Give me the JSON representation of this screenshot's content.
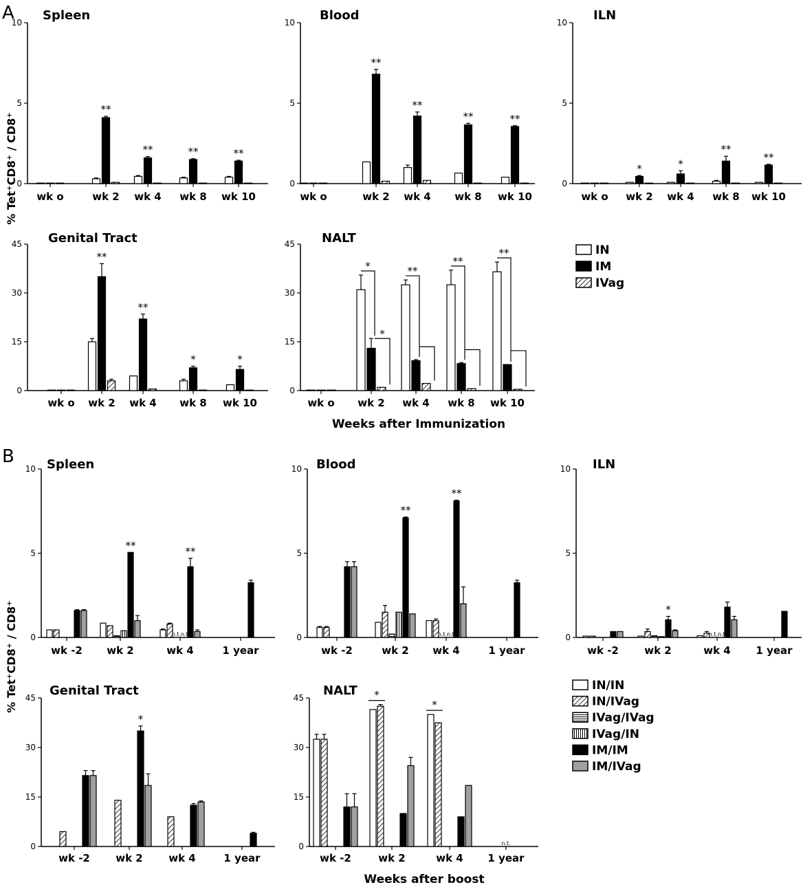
{
  "figure": {
    "panel_letters": [
      "A",
      "B"
    ],
    "ylabel_html": "% Tet⁺CD8⁺ / CD8⁺",
    "xlabel_A": "Weeks after Immunization",
    "xlabel_B": "Weeks after boost"
  },
  "colors": {
    "black": "#000000",
    "gray": "#a0a0a0",
    "white": "#ffffff"
  },
  "legend_A": [
    "IN",
    "IM",
    "IVag"
  ],
  "legend_B": [
    "IN/IN",
    "IN/IVag",
    "IVag/IVag",
    "IVag/IN",
    "IM/IM",
    "IM/IVag"
  ],
  "chart_data": [
    {
      "type": "bar",
      "title": "Spleen",
      "panel": "A",
      "ylim": [
        0,
        10
      ],
      "yticks": [
        0,
        5,
        10
      ],
      "categories": [
        "wk o",
        "wk 2",
        "wk 4",
        "wk 8",
        "wk 10"
      ],
      "series": [
        {
          "name": "IN",
          "values": [
            0,
            0.3,
            0.45,
            0.35,
            0.4
          ],
          "errors": [
            0,
            0.05,
            0.05,
            0.05,
            0.05
          ]
        },
        {
          "name": "IM",
          "values": [
            0,
            4.1,
            1.6,
            1.5,
            1.4
          ],
          "errors": [
            0,
            0.08,
            0.08,
            0.05,
            0.05
          ]
        },
        {
          "name": "IVag",
          "values": [
            0,
            0.08,
            0,
            0,
            0
          ],
          "errors": [
            0,
            0,
            0,
            0,
            0
          ]
        }
      ],
      "significance": [
        "",
        "**",
        "**",
        "**",
        "**"
      ]
    },
    {
      "type": "bar",
      "title": "Blood",
      "panel": "A",
      "ylim": [
        0,
        10
      ],
      "yticks": [
        0,
        5,
        10
      ],
      "categories": [
        "wk o",
        "wk 2",
        "wk 4",
        "wk 8",
        "wk 10"
      ],
      "series": [
        {
          "name": "IN",
          "values": [
            0,
            1.35,
            1.0,
            0.65,
            0.4
          ],
          "errors": [
            0,
            0,
            0.15,
            0,
            0
          ]
        },
        {
          "name": "IM",
          "values": [
            0,
            6.8,
            4.2,
            3.65,
            3.55
          ],
          "errors": [
            0,
            0.3,
            0.25,
            0.1,
            0.05
          ]
        },
        {
          "name": "IVag",
          "values": [
            0,
            0.15,
            0.2,
            0,
            0
          ],
          "errors": [
            0,
            0,
            0,
            0,
            0
          ]
        }
      ],
      "significance": [
        "",
        "**",
        "**",
        "**",
        "**"
      ]
    },
    {
      "type": "bar",
      "title": "ILN",
      "panel": "A",
      "ylim": [
        0,
        10
      ],
      "yticks": [
        0,
        5,
        10
      ],
      "categories": [
        "wk o",
        "wk 2",
        "wk 4",
        "wk 8",
        "wk 10"
      ],
      "series": [
        {
          "name": "IN",
          "values": [
            0,
            0.08,
            0.08,
            0.15,
            0.08
          ],
          "errors": [
            0,
            0,
            0,
            0.05,
            0
          ]
        },
        {
          "name": "IM",
          "values": [
            0,
            0.45,
            0.6,
            1.4,
            1.15
          ],
          "errors": [
            0,
            0.05,
            0.2,
            0.3,
            0.05
          ]
        },
        {
          "name": "IVag",
          "values": [
            0,
            0,
            0,
            0,
            0
          ],
          "errors": [
            0,
            0,
            0,
            0,
            0
          ]
        }
      ],
      "significance": [
        "",
        "*",
        "*",
        "**",
        "**"
      ]
    },
    {
      "type": "bar",
      "title": "Genital Tract",
      "panel": "A",
      "ylim": [
        0,
        45
      ],
      "yticks": [
        0,
        15,
        30,
        45
      ],
      "categories": [
        "wk o",
        "wk 2",
        "wk 4",
        "wk 8",
        "wk 10"
      ],
      "series": [
        {
          "name": "IN",
          "values": [
            0,
            15,
            4.5,
            3,
            1.8
          ],
          "errors": [
            0,
            1,
            0,
            0.5,
            0
          ]
        },
        {
          "name": "IM",
          "values": [
            0,
            35,
            22,
            7,
            6.5
          ],
          "errors": [
            0,
            4,
            1.5,
            0.5,
            1
          ]
        },
        {
          "name": "IVag",
          "values": [
            0,
            3,
            0.5,
            0,
            0
          ],
          "errors": [
            0,
            0.5,
            0,
            0,
            0
          ]
        }
      ],
      "significance": [
        "",
        "**",
        "**",
        "*",
        "*"
      ]
    },
    {
      "type": "bar",
      "title": "NALT",
      "panel": "A",
      "ylim": [
        0,
        45
      ],
      "yticks": [
        0,
        15,
        30,
        45
      ],
      "categories": [
        "wk o",
        "wk 2",
        "wk 4",
        "wk 8",
        "wk 10"
      ],
      "series": [
        {
          "name": "IN",
          "values": [
            0,
            31,
            32.5,
            32.5,
            36.5
          ],
          "errors": [
            0,
            4.5,
            1.5,
            4.5,
            3
          ]
        },
        {
          "name": "IM",
          "values": [
            0,
            13,
            9.2,
            8.3,
            8
          ],
          "errors": [
            0,
            3,
            0.3,
            0.3,
            0
          ]
        },
        {
          "name": "IVag",
          "values": [
            0,
            1,
            2.2,
            0.6,
            0.4
          ],
          "errors": [
            0,
            0,
            0,
            0,
            0
          ]
        }
      ],
      "significance": [
        "",
        "*",
        "**",
        "**",
        "**"
      ],
      "significance_pair2": [
        "",
        "*",
        "",
        "",
        ""
      ]
    },
    {
      "type": "bar",
      "title": "Spleen",
      "panel": "B",
      "ylim": [
        0,
        10
      ],
      "yticks": [
        0,
        5,
        10
      ],
      "categories": [
        "wk -2",
        "wk 2",
        "wk 4",
        "1 year"
      ],
      "series": [
        {
          "name": "IN/IN",
          "values": [
            0.45,
            0.85,
            0.45,
            null
          ],
          "errors": [
            0,
            0,
            0.05,
            0
          ]
        },
        {
          "name": "IN/IVag",
          "values": [
            0.45,
            0.7,
            0.8,
            null
          ],
          "errors": [
            0,
            0,
            0.05,
            0
          ]
        },
        {
          "name": "IVag/IVag",
          "values": [
            null,
            0.1,
            null,
            null
          ],
          "errors": [
            0,
            0,
            0,
            0
          ]
        },
        {
          "name": "IVag/IN",
          "values": [
            null,
            0.4,
            null,
            null
          ],
          "errors": [
            0,
            0,
            0,
            0
          ]
        },
        {
          "name": "IM/IM",
          "values": [
            1.6,
            5.05,
            4.2,
            3.25
          ],
          "errors": [
            0.05,
            0,
            0.5,
            0.15
          ]
        },
        {
          "name": "IM/IVag",
          "values": [
            1.6,
            1.0,
            0.35,
            null
          ],
          "errors": [
            0.05,
            0.3,
            0.1,
            0
          ]
        }
      ],
      "significance": [
        "",
        "**",
        "**",
        ""
      ],
      "nt_labels": [
        "",
        "",
        "n.t.n.t.",
        ""
      ]
    },
    {
      "type": "bar",
      "title": "Blood",
      "panel": "B",
      "ylim": [
        0,
        10
      ],
      "yticks": [
        0,
        5,
        10
      ],
      "categories": [
        "wk -2",
        "wk 2",
        "wk 4",
        "1 year"
      ],
      "series": [
        {
          "name": "IN/IN",
          "values": [
            0.6,
            0.9,
            1.0,
            null
          ],
          "errors": [
            0.05,
            0,
            0,
            0
          ]
        },
        {
          "name": "IN/IVag",
          "values": [
            0.6,
            1.5,
            1.0,
            null
          ],
          "errors": [
            0.05,
            0.4,
            0.1,
            0
          ]
        },
        {
          "name": "IVag/IVag",
          "values": [
            null,
            0.2,
            null,
            null
          ],
          "errors": [
            0,
            0,
            0,
            0
          ]
        },
        {
          "name": "IVag/IN",
          "values": [
            null,
            1.5,
            null,
            null
          ],
          "errors": [
            0,
            0,
            0,
            0
          ]
        },
        {
          "name": "IM/IM",
          "values": [
            4.2,
            7.1,
            8.1,
            3.25
          ],
          "errors": [
            0.3,
            0.05,
            0.05,
            0.15
          ]
        },
        {
          "name": "IM/IVag",
          "values": [
            4.2,
            1.4,
            2.0,
            null
          ],
          "errors": [
            0.3,
            0,
            1.0,
            0
          ]
        }
      ],
      "significance": [
        "",
        "**",
        "**",
        ""
      ],
      "nt_labels": [
        "",
        "",
        "n.t.n.t.",
        ""
      ]
    },
    {
      "type": "bar",
      "title": "ILN",
      "panel": "B",
      "ylim": [
        0,
        10
      ],
      "yticks": [
        0,
        5,
        10
      ],
      "categories": [
        "wk -2",
        "wk 2",
        "wk 4",
        "1 year"
      ],
      "series": [
        {
          "name": "IN/IN",
          "values": [
            0.08,
            0.08,
            0.1,
            null
          ],
          "errors": [
            0,
            0,
            0,
            0
          ]
        },
        {
          "name": "IN/IVag",
          "values": [
            0.08,
            0.35,
            0.25,
            null
          ],
          "errors": [
            0,
            0.15,
            0.1,
            0
          ]
        },
        {
          "name": "IVag/IVag",
          "values": [
            null,
            0.1,
            null,
            null
          ],
          "errors": [
            0,
            0,
            0,
            0
          ]
        },
        {
          "name": "IVag/IN",
          "values": [
            null,
            0.05,
            null,
            null
          ],
          "errors": [
            0,
            0,
            0,
            0
          ]
        },
        {
          "name": "IM/IM",
          "values": [
            0.35,
            1.05,
            1.8,
            1.55
          ],
          "errors": [
            0,
            0.2,
            0.3,
            0
          ]
        },
        {
          "name": "IM/IVag",
          "values": [
            0.35,
            0.4,
            1.05,
            null
          ],
          "errors": [
            0,
            0.05,
            0.2,
            0
          ]
        }
      ],
      "significance": [
        "",
        "*",
        "",
        ""
      ],
      "nt_labels": [
        "",
        "",
        "n.t.n.t.",
        ""
      ]
    },
    {
      "type": "bar",
      "title": "Genital Tract",
      "panel": "B",
      "ylim": [
        0,
        45
      ],
      "yticks": [
        0,
        15,
        30,
        45
      ],
      "categories": [
        "wk -2",
        "wk 2",
        "wk 4",
        "1 year"
      ],
      "series": [
        {
          "name": "IN/IN",
          "values": [
            null,
            null,
            null,
            null
          ],
          "errors": [
            0,
            0,
            0,
            0
          ]
        },
        {
          "name": "IN/IVag",
          "values": [
            4.5,
            14,
            9,
            null
          ],
          "errors": [
            0,
            0,
            0,
            0
          ]
        },
        {
          "name": "IVag/IVag",
          "values": [
            null,
            null,
            null,
            null
          ],
          "errors": [
            0,
            0,
            0,
            0
          ]
        },
        {
          "name": "IVag/IN",
          "values": [
            null,
            null,
            null,
            null
          ],
          "errors": [
            0,
            0,
            0,
            0
          ]
        },
        {
          "name": "IM/IM",
          "values": [
            21.5,
            35,
            12.5,
            4
          ],
          "errors": [
            1.5,
            1.5,
            0.5,
            0.3
          ]
        },
        {
          "name": "IM/IVag",
          "values": [
            21.5,
            18.5,
            13.5,
            null
          ],
          "errors": [
            1.5,
            3.5,
            0.3,
            0
          ]
        }
      ],
      "significance": [
        "",
        "*",
        "",
        ""
      ]
    },
    {
      "type": "bar",
      "title": "NALT",
      "panel": "B",
      "ylim": [
        0,
        45
      ],
      "yticks": [
        0,
        15,
        30,
        45
      ],
      "categories": [
        "wk -2",
        "wk 2",
        "wk 4",
        "1 year"
      ],
      "series": [
        {
          "name": "IN/IN",
          "values": [
            32.5,
            41.5,
            40,
            null
          ],
          "errors": [
            1.5,
            0,
            0,
            0
          ]
        },
        {
          "name": "IN/IVag",
          "values": [
            32.5,
            42.5,
            37.5,
            null
          ],
          "errors": [
            1.5,
            0.5,
            0,
            0
          ]
        },
        {
          "name": "IVag/IVag",
          "values": [
            null,
            null,
            null,
            null
          ],
          "errors": [
            0,
            0,
            0,
            0
          ]
        },
        {
          "name": "IVag/IN",
          "values": [
            null,
            null,
            null,
            null
          ],
          "errors": [
            0,
            0,
            0,
            0
          ]
        },
        {
          "name": "IM/IM",
          "values": [
            12,
            10,
            9,
            null
          ],
          "errors": [
            4,
            0,
            0,
            0
          ]
        },
        {
          "name": "IM/IVag",
          "values": [
            12,
            24.5,
            18.5,
            null
          ],
          "errors": [
            4,
            2.5,
            0,
            0
          ]
        }
      ],
      "significance": [
        "",
        "*",
        "*",
        ""
      ],
      "nt_labels": [
        "",
        "",
        "",
        "n.t."
      ]
    }
  ]
}
